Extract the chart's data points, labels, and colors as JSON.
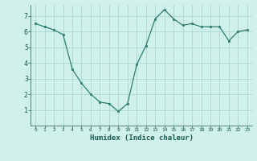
{
  "x": [
    0,
    1,
    2,
    3,
    4,
    5,
    6,
    7,
    8,
    9,
    10,
    11,
    12,
    13,
    14,
    15,
    16,
    17,
    18,
    19,
    20,
    21,
    22,
    23
  ],
  "y": [
    6.5,
    6.3,
    6.1,
    5.8,
    3.6,
    2.7,
    2.0,
    1.5,
    1.4,
    0.9,
    1.4,
    3.9,
    5.1,
    6.8,
    7.4,
    6.8,
    6.4,
    6.5,
    6.3,
    6.3,
    6.3,
    5.4,
    6.0,
    6.1
  ],
  "xlabel": "Humidex (Indice chaleur)",
  "xlim": [
    -0.5,
    23.5
  ],
  "ylim": [
    0,
    7.7
  ],
  "yticks": [
    1,
    2,
    3,
    4,
    5,
    6,
    7
  ],
  "xticks": [
    0,
    1,
    2,
    3,
    4,
    5,
    6,
    7,
    8,
    9,
    10,
    11,
    12,
    13,
    14,
    15,
    16,
    17,
    18,
    19,
    20,
    21,
    22,
    23
  ],
  "line_color": "#2e7d6e",
  "marker_color": "#2e7d6e",
  "bg_color": "#cff0eb",
  "grid_color": "#aad8d0",
  "tick_label_color": "#1a5c50",
  "axis_label_color": "#1a5c50"
}
